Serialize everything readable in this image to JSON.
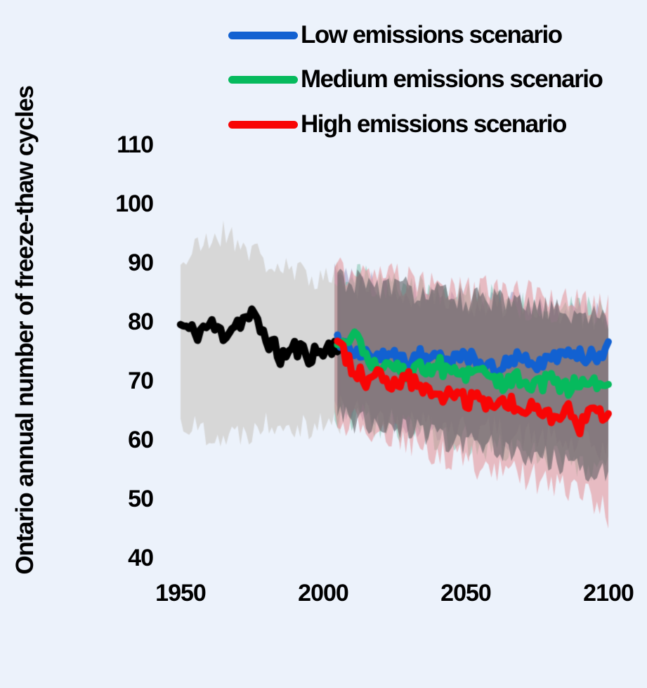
{
  "background": "#ecf2fb",
  "text_color": "#000000",
  "chart_data": {
    "type": "line",
    "title": "",
    "xlabel": "",
    "ylabel": "Ontario annual number of freeze-thaw cycles",
    "x_ticks": [
      1950,
      2000,
      2050,
      2100
    ],
    "y_ticks": [
      110,
      100,
      90,
      80,
      70,
      60,
      50,
      40
    ],
    "x_range": [
      1950,
      2100
    ],
    "y_range": [
      40,
      110
    ],
    "grid": false,
    "legend_position": "top",
    "anchor_step_years": 5,
    "series": [
      {
        "id": "historical",
        "label": "",
        "color": "#000000",
        "x_start": 1950,
        "x_end": 2006,
        "line_noise": 1.7,
        "values": [
          79.5,
          78,
          79.5,
          78,
          80,
          81,
          77.5,
          74,
          75.5,
          74.5,
          75,
          76.5
        ],
        "band": {
          "fill": "#d7d7d7",
          "noise": 2.6,
          "top": [
            90,
            92,
            94,
            95,
            94,
            92,
            90,
            89,
            88,
            88,
            87.5,
            88.5
          ],
          "bottom": [
            63,
            62,
            61.5,
            60.5,
            61,
            62,
            63,
            63.5,
            63,
            62.5,
            63,
            62.5
          ]
        }
      },
      {
        "id": "low",
        "label": "Low emissions scenario",
        "color": "#1261d1",
        "x_start": 2005,
        "x_end": 2100,
        "line_noise": 1.5,
        "values": [
          77,
          75.5,
          74,
          73.5,
          74.5,
          73.5,
          74.5,
          75,
          73,
          74.5,
          73,
          72,
          73.5,
          74.5,
          72.5,
          73.5,
          74.5,
          74,
          74.5,
          75.5
        ],
        "band": {
          "fill": "rgba(138,128,180,0.45)",
          "noise": 2.8,
          "top": [
            88,
            87,
            86,
            86,
            85.5,
            85,
            85,
            84.5,
            84,
            84,
            83.5,
            83,
            83,
            82.5,
            82,
            82,
            81.5,
            81.5,
            81,
            81
          ],
          "bottom": [
            66,
            65,
            64.5,
            64,
            63.5,
            63.5,
            63,
            62.5,
            62.5,
            62,
            61.5,
            61.5,
            61,
            60.5,
            60.5,
            60,
            59.5,
            59,
            59,
            58.5
          ]
        }
      },
      {
        "id": "medium",
        "label": "Medium emissions scenario",
        "color": "#06ba5d",
        "x_start": 2005,
        "x_end": 2100,
        "line_noise": 1.5,
        "values": [
          77,
          78,
          74.5,
          72,
          73,
          71.5,
          72,
          73,
          71,
          70.5,
          71.5,
          70,
          69.5,
          70.5,
          69,
          70.5,
          68.5,
          70,
          69.5,
          68.5
        ],
        "band": {
          "fill": "rgba(105,185,155,0.45)",
          "noise": 2.8,
          "top": [
            88.5,
            88,
            87,
            86.5,
            86,
            86,
            85.5,
            85,
            85,
            84.5,
            84,
            84,
            83.5,
            83,
            83,
            82.5,
            82,
            82,
            81.5,
            81
          ],
          "bottom": [
            65,
            64,
            63.5,
            63,
            62.5,
            62,
            61.5,
            61,
            60.5,
            60,
            59.5,
            59,
            58.5,
            58,
            57.5,
            57,
            56.5,
            56,
            55.5,
            55
          ]
        }
      },
      {
        "id": "high",
        "label": "High emissions scenario",
        "color": "#f80505",
        "x_start": 2005,
        "x_end": 2100,
        "line_noise": 1.5,
        "values": [
          76,
          72.5,
          70,
          72,
          69,
          70.5,
          68,
          67,
          68,
          66.5,
          67,
          66,
          66.5,
          65,
          66.5,
          63.5,
          65.5,
          62.5,
          65,
          63.5
        ],
        "band": {
          "fill": "rgba(228,142,148,0.55)",
          "noise": 2.8,
          "top": [
            89,
            88.5,
            88,
            87.5,
            87.5,
            87,
            86.5,
            86.5,
            86,
            86,
            85.5,
            85,
            85,
            84.5,
            84.5,
            84,
            84,
            83.5,
            83,
            83
          ],
          "bottom": [
            64,
            63,
            62,
            61,
            60.5,
            60,
            59,
            58,
            57.5,
            57,
            56,
            55.5,
            55,
            54,
            53.5,
            53,
            52,
            51.5,
            50,
            47.5
          ]
        }
      }
    ],
    "overlap_band": {
      "fill": "rgba(93,93,98,0.60)",
      "noise": 2.4,
      "x_start": 2005,
      "x_end": 2100,
      "top": [
        87.5,
        87,
        86.5,
        86,
        85.5,
        85.5,
        85,
        84.5,
        84.5,
        84,
        83.5,
        83.5,
        83,
        82.5,
        82.5,
        82,
        81.5,
        81.5,
        81,
        80.5
      ],
      "bottom": [
        64.5,
        63.5,
        63,
        62.5,
        62,
        61.5,
        61,
        60.5,
        60,
        59.5,
        59,
        58.5,
        58,
        57.5,
        57,
        56.5,
        56,
        55.5,
        55,
        54.5
      ]
    }
  }
}
